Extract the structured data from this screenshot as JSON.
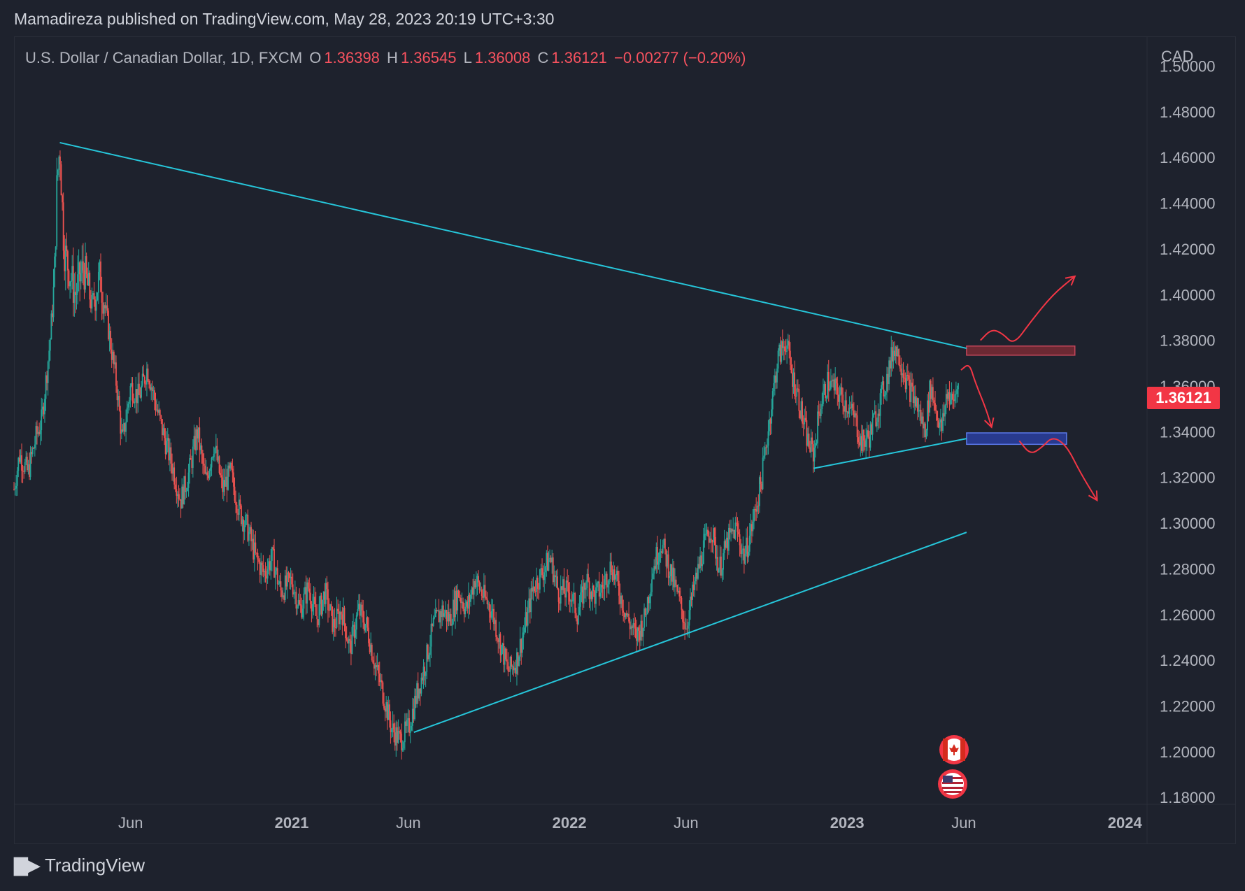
{
  "publish_line": "Mamadireza published on TradingView.com, May 28, 2023 20:19 UTC+3:30",
  "header": {
    "symbol": "U.S. Dollar / Canadian Dollar, 1D, FXCM",
    "open_label": "O",
    "open_value": "1.36398",
    "high_label": "H",
    "high_value": "1.36545",
    "low_label": "L",
    "low_value": "1.36008",
    "close_label": "C",
    "close_value": "1.36121",
    "change": "−0.00277 (−0.20%)"
  },
  "price_axis_currency": "CAD",
  "last_price": "1.36121",
  "footer_brand": "TradingView",
  "colors": {
    "background": "#1e222d",
    "up": "#26a69a",
    "down": "#ef5350",
    "trendline": "#26c6da",
    "arrow": "#f23645",
    "resistance_zone": "#7a2a35",
    "support_zone": "#2a3ea0"
  },
  "icons": [
    "canada-flag-icon",
    "usa-flag-icon"
  ],
  "chart_data": {
    "type": "candlestick",
    "symbol": "USDCAD",
    "timeframe": "1D",
    "y_ticks": [
      "1.50000",
      "1.48000",
      "1.46000",
      "1.44000",
      "1.42000",
      "1.40000",
      "1.38000",
      "1.36000",
      "1.34000",
      "1.32000",
      "1.30000",
      "1.28000",
      "1.26000",
      "1.24000",
      "1.22000",
      "1.20000",
      "1.18000"
    ],
    "y_tick_values": [
      1.5,
      1.48,
      1.46,
      1.44,
      1.42,
      1.4,
      1.38,
      1.36,
      1.34,
      1.32,
      1.3,
      1.28,
      1.26,
      1.24,
      1.22,
      1.2,
      1.18
    ],
    "ylim": [
      1.177,
      1.513
    ],
    "x_ticks": [
      {
        "label": "Jun",
        "t": 2020.42
      },
      {
        "label": "2021",
        "t": 2021.0
      },
      {
        "label": "Jun",
        "t": 2021.42
      },
      {
        "label": "2022",
        "t": 2022.0
      },
      {
        "label": "Jun",
        "t": 2022.42
      },
      {
        "label": "2023",
        "t": 2023.0
      },
      {
        "label": "Jun",
        "t": 2023.42
      },
      {
        "label": "2024",
        "t": 2024.0
      }
    ],
    "x_bold": [
      false,
      true,
      false,
      true,
      false,
      true,
      false,
      true
    ],
    "xlim": [
      2020.0,
      2024.08
    ],
    "price_path": [
      [
        2020.0,
        1.315
      ],
      [
        2020.02,
        1.33
      ],
      [
        2020.05,
        1.322
      ],
      [
        2020.08,
        1.338
      ],
      [
        2020.1,
        1.345
      ],
      [
        2020.13,
        1.38
      ],
      [
        2020.145,
        1.405
      ],
      [
        2020.155,
        1.45
      ],
      [
        2020.165,
        1.465
      ],
      [
        2020.18,
        1.42
      ],
      [
        2020.2,
        1.41
      ],
      [
        2020.22,
        1.4
      ],
      [
        2020.25,
        1.412
      ],
      [
        2020.28,
        1.395
      ],
      [
        2020.31,
        1.408
      ],
      [
        2020.34,
        1.385
      ],
      [
        2020.37,
        1.36
      ],
      [
        2020.39,
        1.335
      ],
      [
        2020.42,
        1.36
      ],
      [
        2020.45,
        1.355
      ],
      [
        2020.48,
        1.368
      ],
      [
        2020.51,
        1.352
      ],
      [
        2020.54,
        1.338
      ],
      [
        2020.57,
        1.325
      ],
      [
        2020.6,
        1.31
      ],
      [
        2020.63,
        1.322
      ],
      [
        2020.66,
        1.34
      ],
      [
        2020.69,
        1.318
      ],
      [
        2020.72,
        1.335
      ],
      [
        2020.75,
        1.315
      ],
      [
        2020.78,
        1.322
      ],
      [
        2020.81,
        1.306
      ],
      [
        2020.84,
        1.298
      ],
      [
        2020.87,
        1.285
      ],
      [
        2020.9,
        1.278
      ],
      [
        2020.93,
        1.285
      ],
      [
        2020.96,
        1.27
      ],
      [
        2021.0,
        1.275
      ],
      [
        2021.03,
        1.262
      ],
      [
        2021.06,
        1.272
      ],
      [
        2021.09,
        1.258
      ],
      [
        2021.12,
        1.27
      ],
      [
        2021.15,
        1.255
      ],
      [
        2021.18,
        1.262
      ],
      [
        2021.21,
        1.245
      ],
      [
        2021.24,
        1.262
      ],
      [
        2021.27,
        1.255
      ],
      [
        2021.3,
        1.238
      ],
      [
        2021.33,
        1.225
      ],
      [
        2021.36,
        1.21
      ],
      [
        2021.39,
        1.205
      ],
      [
        2021.42,
        1.21
      ],
      [
        2021.45,
        1.225
      ],
      [
        2021.48,
        1.238
      ],
      [
        2021.51,
        1.255
      ],
      [
        2021.54,
        1.262
      ],
      [
        2021.57,
        1.258
      ],
      [
        2021.6,
        1.27
      ],
      [
        2021.63,
        1.262
      ],
      [
        2021.66,
        1.276
      ],
      [
        2021.69,
        1.268
      ],
      [
        2021.72,
        1.262
      ],
      [
        2021.75,
        1.248
      ],
      [
        2021.78,
        1.235
      ],
      [
        2021.81,
        1.24
      ],
      [
        2021.84,
        1.255
      ],
      [
        2021.87,
        1.272
      ],
      [
        2021.9,
        1.278
      ],
      [
        2021.93,
        1.285
      ],
      [
        2021.96,
        1.27
      ],
      [
        2022.0,
        1.27
      ],
      [
        2022.03,
        1.26
      ],
      [
        2022.06,
        1.275
      ],
      [
        2022.09,
        1.268
      ],
      [
        2022.12,
        1.272
      ],
      [
        2022.15,
        1.282
      ],
      [
        2022.18,
        1.27
      ],
      [
        2022.21,
        1.258
      ],
      [
        2022.24,
        1.25
      ],
      [
        2022.27,
        1.258
      ],
      [
        2022.3,
        1.28
      ],
      [
        2022.33,
        1.292
      ],
      [
        2022.36,
        1.28
      ],
      [
        2022.39,
        1.268
      ],
      [
        2022.42,
        1.255
      ],
      [
        2022.45,
        1.272
      ],
      [
        2022.48,
        1.288
      ],
      [
        2022.51,
        1.298
      ],
      [
        2022.54,
        1.28
      ],
      [
        2022.57,
        1.292
      ],
      [
        2022.6,
        1.298
      ],
      [
        2022.63,
        1.285
      ],
      [
        2022.66,
        1.3
      ],
      [
        2022.69,
        1.318
      ],
      [
        2022.72,
        1.345
      ],
      [
        2022.75,
        1.372
      ],
      [
        2022.78,
        1.38
      ],
      [
        2022.8,
        1.365
      ],
      [
        2022.82,
        1.358
      ],
      [
        2022.84,
        1.345
      ],
      [
        2022.86,
        1.335
      ],
      [
        2022.88,
        1.33
      ],
      [
        2022.9,
        1.35
      ],
      [
        2022.93,
        1.362
      ],
      [
        2022.96,
        1.358
      ],
      [
        2023.0,
        1.352
      ],
      [
        2023.03,
        1.345
      ],
      [
        2023.05,
        1.335
      ],
      [
        2023.08,
        1.338
      ],
      [
        2023.11,
        1.35
      ],
      [
        2023.14,
        1.362
      ],
      [
        2023.17,
        1.378
      ],
      [
        2023.19,
        1.372
      ],
      [
        2023.22,
        1.36
      ],
      [
        2023.25,
        1.352
      ],
      [
        2023.28,
        1.34
      ],
      [
        2023.3,
        1.36
      ],
      [
        2023.32,
        1.35
      ],
      [
        2023.34,
        1.34
      ],
      [
        2023.36,
        1.358
      ],
      [
        2023.38,
        1.352
      ],
      [
        2023.4,
        1.3612
      ]
    ],
    "trendlines": [
      {
        "name": "",
        "from": [
          2020.165,
          1.4665
        ],
        "to": [
          2023.43,
          1.3765
        ]
      },
      {
        "name": "",
        "from": [
          2021.44,
          1.2085
        ],
        "to": [
          2023.43,
          1.296
        ]
      },
      {
        "name": "",
        "from": [
          2022.88,
          1.324
        ],
        "to": [
          2023.43,
          1.337
        ]
      }
    ],
    "zones": [
      {
        "name": "",
        "t0": 2023.43,
        "t1": 2023.82,
        "y0": 1.3735,
        "y1": 1.3775
      },
      {
        "name": "",
        "t0": 2023.43,
        "t1": 2023.79,
        "y0": 1.3345,
        "y1": 1.3395
      }
    ],
    "projection_paths": [
      [
        [
          2023.48,
          1.38
        ],
        [
          2023.52,
          1.385
        ],
        [
          2023.56,
          1.383
        ],
        [
          2023.6,
          1.378
        ],
        [
          2023.66,
          1.388
        ],
        [
          2023.74,
          1.4
        ],
        [
          2023.82,
          1.408
        ]
      ],
      [
        [
          2023.41,
          1.367
        ],
        [
          2023.44,
          1.37
        ],
        [
          2023.46,
          1.362
        ],
        [
          2023.5,
          1.35
        ],
        [
          2023.52,
          1.342
        ]
      ],
      [
        [
          2023.62,
          1.336
        ],
        [
          2023.66,
          1.33
        ],
        [
          2023.7,
          1.333
        ],
        [
          2023.74,
          1.338
        ],
        [
          2023.79,
          1.334
        ],
        [
          2023.84,
          1.322
        ],
        [
          2023.9,
          1.31
        ]
      ]
    ]
  }
}
